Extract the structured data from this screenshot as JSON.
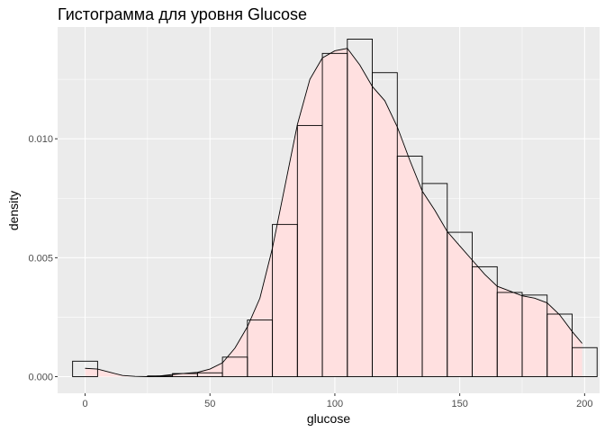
{
  "chart_data": {
    "type": "bar",
    "title": "Гистограмма для уровня Glucose",
    "xlabel": "glucose",
    "ylabel": "density",
    "xlim": [
      -11,
      206
    ],
    "ylim": [
      -0.0007,
      0.0147
    ],
    "x_ticks": [
      0,
      50,
      100,
      150,
      200
    ],
    "x_tick_labels": [
      "0",
      "50",
      "100",
      "150",
      "200"
    ],
    "y_ticks": [
      0.0,
      0.005,
      0.01
    ],
    "y_tick_labels": [
      "0.000",
      "0.005",
      "0.010"
    ],
    "grid": true,
    "legend": "none",
    "bin_width": 10,
    "bins": [
      {
        "x0": -5,
        "x1": 5,
        "density": 0.00065
      },
      {
        "x0": 5,
        "x1": 15,
        "density": 0.0
      },
      {
        "x0": 15,
        "x1": 25,
        "density": 0.0
      },
      {
        "x0": 25,
        "x1": 35,
        "density": 3e-05
      },
      {
        "x0": 35,
        "x1": 45,
        "density": 0.00013
      },
      {
        "x0": 45,
        "x1": 55,
        "density": 0.00016
      },
      {
        "x0": 55,
        "x1": 65,
        "density": 0.00082
      },
      {
        "x0": 65,
        "x1": 75,
        "density": 0.00238
      },
      {
        "x0": 75,
        "x1": 85,
        "density": 0.0064
      },
      {
        "x0": 85,
        "x1": 95,
        "density": 0.01056
      },
      {
        "x0": 95,
        "x1": 105,
        "density": 0.01359
      },
      {
        "x0": 105,
        "x1": 115,
        "density": 0.01419
      },
      {
        "x0": 115,
        "x1": 125,
        "density": 0.01278
      },
      {
        "x0": 125,
        "x1": 135,
        "density": 0.00927
      },
      {
        "x0": 135,
        "x1": 145,
        "density": 0.00812
      },
      {
        "x0": 145,
        "x1": 155,
        "density": 0.00607
      },
      {
        "x0": 155,
        "x1": 165,
        "density": 0.00462
      },
      {
        "x0": 165,
        "x1": 175,
        "density": 0.00354
      },
      {
        "x0": 175,
        "x1": 185,
        "density": 0.00343
      },
      {
        "x0": 185,
        "x1": 195,
        "density": 0.00263
      },
      {
        "x0": 195,
        "x1": 205,
        "density": 0.00122
      }
    ],
    "density_curve": {
      "x": [
        0,
        5,
        10,
        15,
        20,
        25,
        30,
        35,
        40,
        45,
        50,
        55,
        60,
        65,
        70,
        75,
        80,
        85,
        90,
        95,
        100,
        105,
        110,
        115,
        120,
        125,
        130,
        135,
        140,
        145,
        150,
        155,
        160,
        165,
        170,
        175,
        180,
        185,
        190,
        195,
        199
      ],
      "y": [
        0.00035,
        0.00032,
        0.00018,
        5e-05,
        1e-05,
        0.0,
        3e-05,
        9e-05,
        0.00014,
        0.00018,
        0.00032,
        0.00058,
        0.0012,
        0.0021,
        0.0033,
        0.0054,
        0.008,
        0.0106,
        0.0125,
        0.0134,
        0.0137,
        0.0138,
        0.0131,
        0.0122,
        0.0116,
        0.0105,
        0.0091,
        0.0078,
        0.007,
        0.0061,
        0.0055,
        0.0049,
        0.0043,
        0.0038,
        0.0036,
        0.0034,
        0.0033,
        0.0031,
        0.0026,
        0.0019,
        0.0014
      ]
    },
    "colors": {
      "panel_background": "#ebebeb",
      "grid": "#ffffff",
      "bar_fill": "#ffffff",
      "bar_outline": "#000000",
      "density_fill": "#ffe0e0",
      "density_line": "#000000"
    }
  }
}
